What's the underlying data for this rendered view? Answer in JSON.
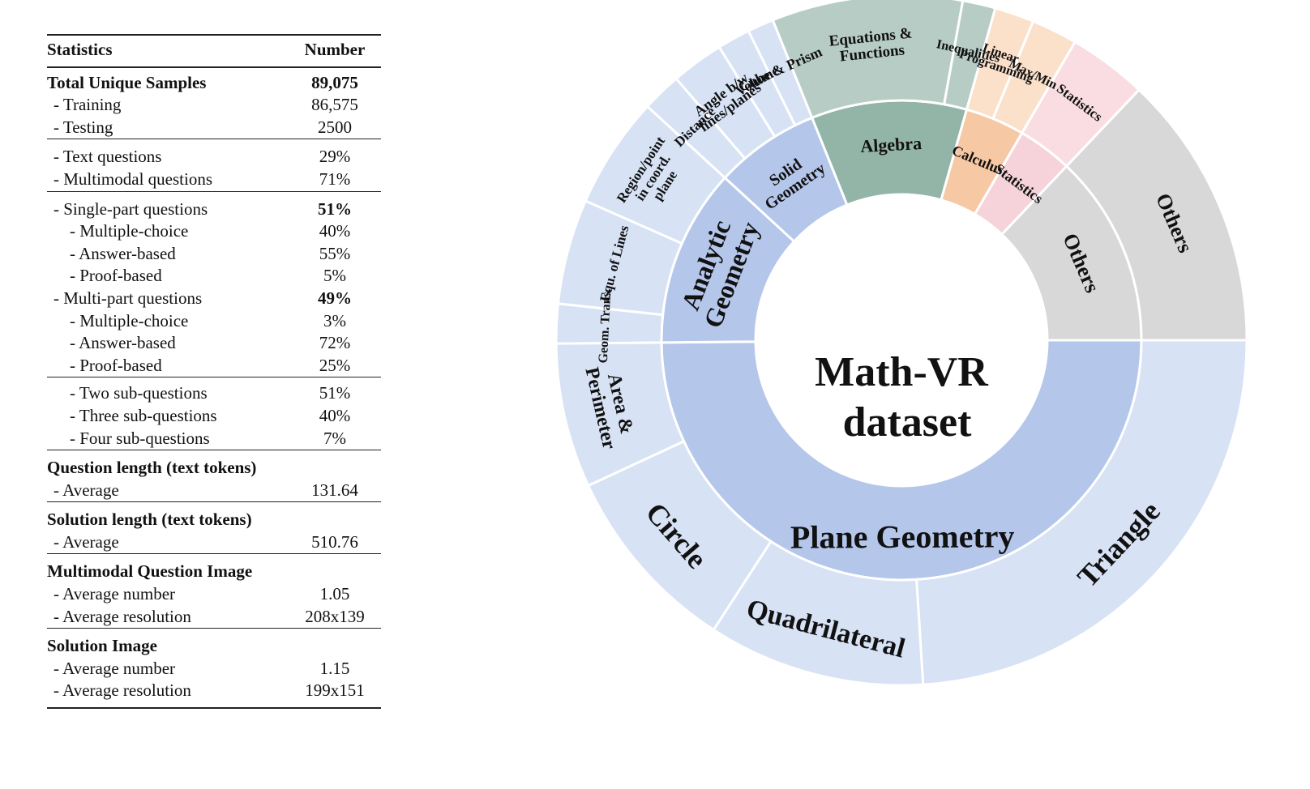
{
  "table": {
    "header": {
      "label": "Statistics",
      "value": "Number"
    },
    "rows": [
      {
        "label": "Total Unique Samples",
        "value": "89,075"
      },
      {
        "label": "- Training",
        "value": "86,575"
      },
      {
        "label": "- Testing",
        "value": "2500"
      },
      {
        "label": "- Text questions",
        "value": "29%"
      },
      {
        "label": "- Multimodal questions",
        "value": "71%"
      },
      {
        "label": "- Single-part questions",
        "value": "51%"
      },
      {
        "label": "- Multiple-choice",
        "value": "40%"
      },
      {
        "label": "- Answer-based",
        "value": "55%"
      },
      {
        "label": "- Proof-based",
        "value": "5%"
      },
      {
        "label": "- Multi-part questions",
        "value": "49%"
      },
      {
        "label": "- Multiple-choice",
        "value": "3%"
      },
      {
        "label": "- Answer-based",
        "value": "72%"
      },
      {
        "label": "- Proof-based",
        "value": "25%"
      },
      {
        "label": "- Two sub-questions",
        "value": "51%"
      },
      {
        "label": "- Three sub-questions",
        "value": "40%"
      },
      {
        "label": "- Four sub-questions",
        "value": "7%"
      },
      {
        "label": "Question length (text tokens)",
        "value": ""
      },
      {
        "label": "- Average",
        "value": "131.64"
      },
      {
        "label": "Solution length (text tokens)",
        "value": ""
      },
      {
        "label": "- Average",
        "value": "510.76"
      },
      {
        "label": "Multimodal Question Image",
        "value": ""
      },
      {
        "label": "- Average number",
        "value": "1.05"
      },
      {
        "label": "- Average resolution",
        "value": "208x139"
      },
      {
        "label": "Solution Image",
        "value": ""
      },
      {
        "label": "- Average number",
        "value": "1.15"
      },
      {
        "label": "- Average resolution",
        "value": "199x151"
      }
    ]
  },
  "chart_data": {
    "type": "sunburst",
    "title": "Math-VR dataset",
    "title_lines": [
      "Math-VR",
      "dataset"
    ],
    "unit": "degrees of arc (estimated from wedge angles)",
    "inner": [
      {
        "name": "Plane Geometry",
        "label_lines": [
          "Plane Geometry"
        ],
        "value": 162,
        "color": "#b4c6ea"
      },
      {
        "name": "Analytic Geometry",
        "label_lines": [
          "Analytic",
          "Geometry"
        ],
        "value": 39,
        "color": "#b4c6ea"
      },
      {
        "name": "Solid Geometry",
        "label_lines": [
          "Solid",
          "Geometry"
        ],
        "value": 23,
        "color": "#b4c6ea"
      },
      {
        "name": "Algebra",
        "label_lines": [
          "Algebra"
        ],
        "value": 34,
        "color": "#93b5a8"
      },
      {
        "name": "Calculus",
        "label_lines": [
          "Calculus"
        ],
        "value": 13,
        "color": "#f7c8a4"
      },
      {
        "name": "Statistics",
        "label_lines": [
          "Statistics"
        ],
        "value": 12,
        "color": "#f6d3da"
      },
      {
        "name": "Others",
        "label_lines": [
          "Others"
        ],
        "value": 42,
        "color": "#d8d8d8"
      }
    ],
    "outer": [
      {
        "name": "Triangle",
        "parent": "Plane Geometry",
        "value": 78,
        "color": "#d7e2f5"
      },
      {
        "name": "Quadrilateral",
        "parent": "Plane Geometry",
        "value": 33,
        "color": "#d7e2f5"
      },
      {
        "name": "Circle",
        "parent": "Plane Geometry",
        "value": 29,
        "color": "#d7e2f5"
      },
      {
        "name": "Area & Perimeter",
        "parent": "Plane Geometry",
        "value": 22,
        "color": "#d7e2f5"
      },
      {
        "name": "Geom. Trans.",
        "parent": "Analytic Geometry",
        "value": 6,
        "color": "#d7e2f5"
      },
      {
        "name": "Equ. of Lines",
        "parent": "Analytic Geometry",
        "value": 16,
        "color": "#d7e2f5"
      },
      {
        "name": "Region/point in coord. plane",
        "parent": "Analytic Geometry",
        "value": 17,
        "color": "#d7e2f5"
      },
      {
        "name": "Distance",
        "parent": "Solid Geometry",
        "value": 6,
        "color": "#d7e2f5"
      },
      {
        "name": "Angle b/w lines/planes",
        "parent": "Solid Geometry",
        "value": 8,
        "color": "#d7e2f5"
      },
      {
        "name": "Volume",
        "parent": "Solid Geometry",
        "value": 5,
        "color": "#d7e2f5"
      },
      {
        "name": "Cube & Prism",
        "parent": "Solid Geometry",
        "value": 4,
        "color": "#d7e2f5"
      },
      {
        "name": "Equations & Functions",
        "parent": "Algebra",
        "value": 29,
        "color": "#b6ccc4"
      },
      {
        "name": "Inequalities",
        "parent": "Algebra",
        "value": 5,
        "color": "#b6ccc4"
      },
      {
        "name": "Linear Programming",
        "parent": "Calculus",
        "value": 6,
        "color": "#fbe0ca"
      },
      {
        "name": "Max/Min",
        "parent": "Calculus",
        "value": 7,
        "color": "#fbe0ca"
      },
      {
        "name": "Statistics",
        "parent": "Statistics",
        "value": 12,
        "color": "#f9dde3"
      },
      {
        "name": "Others",
        "parent": "Others",
        "value": 42,
        "color": "#d8d8d8"
      }
    ],
    "outer_labels": [
      {
        "text": "Triangle",
        "seg": 0,
        "lines": [
          "Triangle"
        ]
      },
      {
        "text": "Quadrilateral",
        "seg": 1,
        "lines": [
          "Quadrilateral"
        ]
      },
      {
        "text": "Circle",
        "seg": 2,
        "lines": [
          "Circle"
        ]
      },
      {
        "text": "Area & Perimeter",
        "seg": 3,
        "lines": [
          "Area &",
          "Perimeter"
        ]
      },
      {
        "text": "Geom. Trans.",
        "seg": 4,
        "lines": [
          "Geom. Trans."
        ]
      },
      {
        "text": "Equ. of Lines",
        "seg": 5,
        "lines": [
          "Equ. of Lines"
        ]
      },
      {
        "text": "Region/point in coord. plane",
        "seg": 6,
        "lines": [
          "Region/point",
          "in coord.",
          "plane"
        ]
      },
      {
        "text": "Distance",
        "seg": 7,
        "lines": [
          "Distance"
        ]
      },
      {
        "text": "Angle b/w lines/planes",
        "seg": 8,
        "lines": [
          "Angle b/w",
          "lines/planes"
        ]
      },
      {
        "text": "Volume",
        "seg": 9,
        "lines": [
          "Volume"
        ]
      },
      {
        "text": "Cube & Prism",
        "seg": 10,
        "lines": [
          "Cube & Prism"
        ]
      },
      {
        "text": "Equations & Functions",
        "seg": 11,
        "lines": [
          "Equations &",
          "Functions"
        ]
      },
      {
        "text": "Inequalities",
        "seg": 12,
        "lines": [
          "Inequalities"
        ]
      },
      {
        "text": "Linear Programming",
        "seg": 13,
        "lines": [
          "Linear",
          "Programming"
        ]
      },
      {
        "text": "Max/Min",
        "seg": 14,
        "lines": [
          "Max/Min"
        ]
      },
      {
        "text": "Statistics",
        "seg": 15,
        "lines": [
          "Statistics"
        ]
      },
      {
        "text": "Others",
        "seg": 16,
        "lines": [
          "Others"
        ]
      }
    ]
  }
}
